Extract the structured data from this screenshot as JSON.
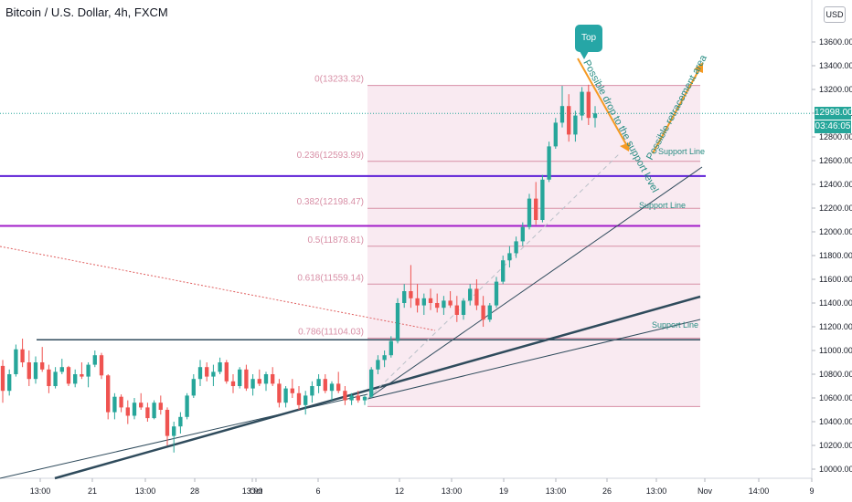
{
  "header": {
    "title": "Bitcoin / U.S. Dollar, 4h, FXCM",
    "currency": "USD"
  },
  "price_tags": {
    "last_price": "12998.00",
    "countdown": "03:46:05"
  },
  "colors": {
    "bull": "#26a69a",
    "bear": "#ef5350",
    "fib": "#d88fa6",
    "fib_bg": "#f9eaf1",
    "support_purple": "#5d1fd6",
    "support_magenta": "#a21cc9",
    "trend": "#2f4b5c",
    "orange": "#f59a23",
    "badge": "#26a6a6",
    "annotation": "#268c82",
    "price_line": "#26a69a"
  },
  "annotations": {
    "top": "Top",
    "drop_text": "Possible drop to the support level",
    "retrace_text": "Possible retracement area",
    "support_labels": [
      "Support Line",
      "Support Line",
      "Support Line"
    ]
  },
  "chart_data": {
    "type": "candlestick",
    "title": "Bitcoin / U.S. Dollar, 4h, FXCM",
    "y_ticks": [
      10000,
      10200,
      10400,
      10600,
      10800,
      11000,
      11200,
      11400,
      11600,
      11800,
      12000,
      12200,
      12400,
      12600,
      12800,
      13000,
      13200,
      13400,
      13600
    ],
    "y_tick_labels": [
      "10000.00",
      "10200.00",
      "10400.00",
      "10600.00",
      "10800.00",
      "11000.00",
      "11200.00",
      "11400.00",
      "11600.00",
      "11800.00",
      "12000.00",
      "12200.00",
      "12400.00",
      "12600.00",
      "12800.00",
      "13000.00",
      "13200.00",
      "13400.00",
      "13600.00"
    ],
    "x_labels": [
      "13:00",
      "21",
      "13:00",
      "28",
      "13:00",
      "Oct",
      "6",
      "12",
      "13:00",
      "19",
      "13:00",
      "26",
      "13:00",
      "Nov",
      "14:00",
      "9"
    ],
    "fib_levels": [
      {
        "label": "0(13233.32)",
        "value": 13233.32
      },
      {
        "label": "0.236(12593.99)",
        "value": 12593.99
      },
      {
        "label": "0.382(12198.47)",
        "value": 12198.47
      },
      {
        "label": "0.5(11878.81)",
        "value": 11878.81
      },
      {
        "label": "0.618(11559.14)",
        "value": 11559.14
      },
      {
        "label": "0.786(11104.03)",
        "value": 11104.03
      }
    ],
    "fib_extra_level": 10528,
    "horizontal_supports": [
      12470,
      12050,
      11090
    ],
    "last_price": 12998.0,
    "candles_ohlc_approx": [
      [
        10870,
        10920,
        10560,
        10660
      ],
      [
        10660,
        10840,
        10620,
        10800
      ],
      [
        10800,
        11050,
        10780,
        11010
      ],
      [
        11010,
        11100,
        10860,
        10900
      ],
      [
        10900,
        11000,
        10700,
        10760
      ],
      [
        10760,
        10950,
        10720,
        10900
      ],
      [
        10900,
        11030,
        10820,
        10840
      ],
      [
        10840,
        10880,
        10640,
        10700
      ],
      [
        10700,
        10860,
        10680,
        10820
      ],
      [
        10820,
        10930,
        10800,
        10860
      ],
      [
        10860,
        10870,
        10700,
        10720
      ],
      [
        10720,
        10840,
        10690,
        10800
      ],
      [
        10800,
        10900,
        10760,
        10780
      ],
      [
        10780,
        10900,
        10690,
        10880
      ],
      [
        10880,
        11000,
        10860,
        10960
      ],
      [
        10960,
        10980,
        10760,
        10790
      ],
      [
        10790,
        10800,
        10420,
        10480
      ],
      [
        10480,
        10640,
        10420,
        10610
      ],
      [
        10610,
        10630,
        10480,
        10520
      ],
      [
        10520,
        10580,
        10380,
        10450
      ],
      [
        10450,
        10600,
        10420,
        10560
      ],
      [
        10560,
        10640,
        10500,
        10520
      ],
      [
        10520,
        10560,
        10400,
        10430
      ],
      [
        10430,
        10580,
        10420,
        10560
      ],
      [
        10560,
        10620,
        10460,
        10500
      ],
      [
        10500,
        10520,
        10200,
        10280
      ],
      [
        10280,
        10400,
        10140,
        10360
      ],
      [
        10360,
        10480,
        10300,
        10440
      ],
      [
        10440,
        10640,
        10420,
        10620
      ],
      [
        10620,
        10800,
        10600,
        10760
      ],
      [
        10760,
        10920,
        10700,
        10860
      ],
      [
        10860,
        10900,
        10740,
        10780
      ],
      [
        10780,
        10880,
        10700,
        10820
      ],
      [
        10820,
        10940,
        10800,
        10900
      ],
      [
        10900,
        10920,
        10720,
        10740
      ],
      [
        10740,
        10800,
        10640,
        10700
      ],
      [
        10700,
        10860,
        10680,
        10840
      ],
      [
        10840,
        10880,
        10660,
        10680
      ],
      [
        10680,
        10800,
        10620,
        10760
      ],
      [
        10760,
        10840,
        10700,
        10720
      ],
      [
        10720,
        10820,
        10660,
        10800
      ],
      [
        10800,
        10860,
        10700,
        10720
      ],
      [
        10720,
        10760,
        10520,
        10560
      ],
      [
        10560,
        10700,
        10520,
        10680
      ],
      [
        10680,
        10760,
        10600,
        10640
      ],
      [
        10640,
        10700,
        10500,
        10540
      ],
      [
        10540,
        10660,
        10460,
        10620
      ],
      [
        10620,
        10740,
        10560,
        10700
      ],
      [
        10700,
        10800,
        10640,
        10760
      ],
      [
        10760,
        10800,
        10640,
        10660
      ],
      [
        10660,
        10740,
        10580,
        10720
      ],
      [
        10720,
        10820,
        10640,
        10660
      ],
      [
        10660,
        10700,
        10540,
        10580
      ],
      [
        10580,
        10640,
        10540,
        10620
      ],
      [
        10620,
        10660,
        10560,
        10580
      ],
      [
        10580,
        10620,
        10540,
        10610
      ],
      [
        10610,
        10860,
        10600,
        10840
      ],
      [
        10840,
        10960,
        10800,
        10920
      ],
      [
        10920,
        11000,
        10860,
        10960
      ],
      [
        10960,
        11120,
        10940,
        11080
      ],
      [
        11080,
        11440,
        11060,
        11400
      ],
      [
        11400,
        11560,
        11360,
        11500
      ],
      [
        11500,
        11720,
        11360,
        11440
      ],
      [
        11440,
        11560,
        11320,
        11380
      ],
      [
        11380,
        11480,
        11300,
        11440
      ],
      [
        11440,
        11520,
        11340,
        11400
      ],
      [
        11400,
        11480,
        11320,
        11360
      ],
      [
        11360,
        11460,
        11300,
        11420
      ],
      [
        11420,
        11500,
        11360,
        11380
      ],
      [
        11380,
        11460,
        11240,
        11300
      ],
      [
        11300,
        11440,
        11260,
        11420
      ],
      [
        11420,
        11560,
        11380,
        11520
      ],
      [
        11520,
        11600,
        11340,
        11380
      ],
      [
        11380,
        11460,
        11200,
        11260
      ],
      [
        11260,
        11400,
        11240,
        11380
      ],
      [
        11380,
        11620,
        11360,
        11580
      ],
      [
        11580,
        11800,
        11560,
        11760
      ],
      [
        11760,
        11880,
        11700,
        11820
      ],
      [
        11820,
        11960,
        11780,
        11920
      ],
      [
        11920,
        12080,
        11880,
        12040
      ],
      [
        12040,
        12320,
        12020,
        12280
      ],
      [
        12280,
        12420,
        12060,
        12100
      ],
      [
        12100,
        12480,
        12080,
        12440
      ],
      [
        12440,
        12760,
        12420,
        12720
      ],
      [
        12720,
        12960,
        12700,
        12920
      ],
      [
        12920,
        13230,
        12880,
        13060
      ],
      [
        13060,
        13160,
        12760,
        12820
      ],
      [
        12820,
        13020,
        12760,
        12980
      ],
      [
        12980,
        13220,
        12940,
        13180
      ],
      [
        13180,
        13240,
        12900,
        12960
      ],
      [
        12960,
        13060,
        12880,
        12998
      ]
    ]
  }
}
